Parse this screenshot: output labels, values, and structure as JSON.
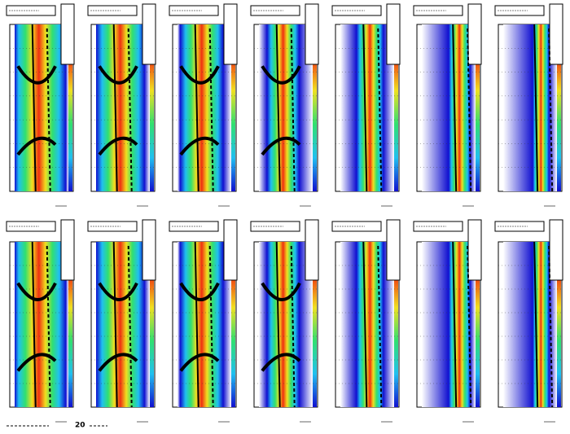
{
  "footer": {
    "label": "20"
  }
}
